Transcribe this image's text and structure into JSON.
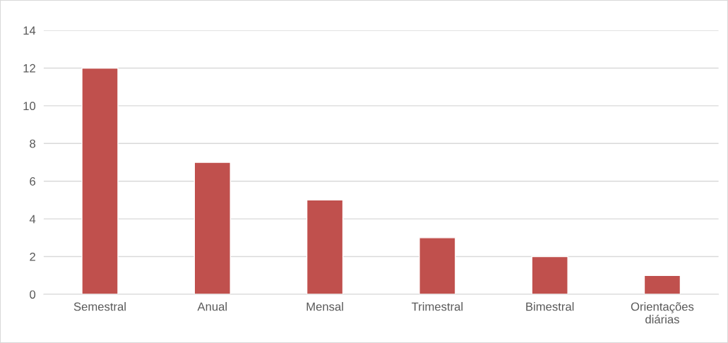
{
  "chart_data": {
    "type": "bar",
    "categories": [
      "Semestral",
      "Anual",
      "Mensal",
      "Trimestral",
      "Bimestral",
      "Orientações diárias"
    ],
    "values": [
      12,
      7,
      5,
      3,
      2,
      1
    ],
    "color": "#c0504d",
    "ylim": [
      0,
      14
    ],
    "yticks": [
      0,
      2,
      4,
      6,
      8,
      10,
      12,
      14
    ],
    "grid": "y",
    "legend": false
  }
}
